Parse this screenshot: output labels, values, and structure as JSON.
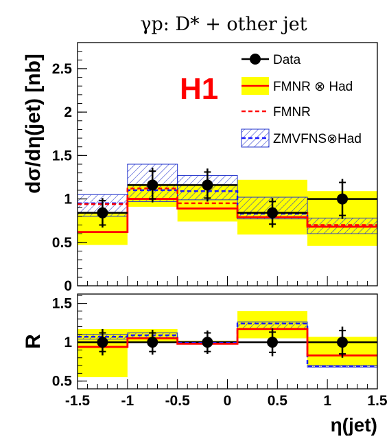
{
  "chart_data": [
    {
      "type": "line",
      "title": "γp:  D* + other jet",
      "ylabel": "dσ/dη(jet) [nb]",
      "xlabel": "",
      "xlim": [
        -1.5,
        1.5
      ],
      "ylim": [
        0,
        2.8
      ],
      "ytick_labels": [
        "0",
        "0.5",
        "1",
        "1.5",
        "2",
        "2.5"
      ],
      "yticks": [
        0,
        0.5,
        1,
        1.5,
        2,
        2.5
      ],
      "grid": false,
      "legend_position": "top-right",
      "experiment_label": "H1",
      "bins": [
        [
          -1.5,
          -1.0
        ],
        [
          -1.0,
          -0.5
        ],
        [
          -0.5,
          0.1
        ],
        [
          0.1,
          0.8
        ],
        [
          0.8,
          1.5
        ]
      ],
      "series": [
        {
          "name": "Data",
          "x": [
            -1.25,
            -0.75,
            -0.2,
            0.45,
            1.15
          ],
          "y": [
            0.84,
            1.16,
            1.16,
            0.84,
            1.0
          ],
          "err_stat": [
            0.14,
            0.16,
            0.15,
            0.13,
            0.19
          ],
          "err_tot": [
            0.17,
            0.2,
            0.19,
            0.17,
            0.23
          ]
        },
        {
          "name": "FMNR ⊗ Had",
          "values": [
            0.62,
            1.0,
            0.89,
            0.79,
            0.68
          ],
          "band_low": [
            0.47,
            0.91,
            0.74,
            0.59,
            0.46
          ],
          "band_high": [
            0.85,
            1.17,
            1.16,
            1.22,
            1.09
          ]
        },
        {
          "name": "FMNR",
          "values": [
            0.94,
            1.12,
            0.95,
            0.84,
            0.7
          ]
        },
        {
          "name": "ZMVFNS⊗Had",
          "values": [
            0.95,
            1.1,
            1.09,
            0.83,
            0.68
          ],
          "band_low": [
            0.8,
            0.97,
            0.99,
            0.77,
            0.6
          ],
          "band_high": [
            1.05,
            1.4,
            1.27,
            1.02,
            0.78
          ]
        }
      ]
    },
    {
      "type": "line",
      "title": "",
      "ylabel": "R",
      "xlabel": "η(jet)",
      "xlim": [
        -1.5,
        1.5
      ],
      "ylim": [
        0.4,
        1.62
      ],
      "ytick_labels": [
        "0.5",
        "1",
        "1.5"
      ],
      "yticks": [
        0.5,
        1,
        1.5
      ],
      "xtick_labels": [
        "-1.5",
        "-1",
        "-0.5",
        "0",
        "0.5",
        "1",
        "1.5"
      ],
      "xticks": [
        -1.5,
        -1,
        -0.5,
        0,
        0.5,
        1,
        1.5
      ],
      "reference_line": 1,
      "bins": [
        [
          -1.5,
          -1.0
        ],
        [
          -1.0,
          -0.5
        ],
        [
          -0.5,
          0.1
        ],
        [
          0.1,
          0.8
        ],
        [
          0.8,
          1.5
        ]
      ],
      "series": [
        {
          "name": "Data",
          "x": [
            -1.25,
            -0.75,
            -0.2,
            0.45,
            1.15
          ],
          "y": [
            1.0,
            1.0,
            1.0,
            1.0,
            1.0
          ],
          "err_stat": [
            0.12,
            0.12,
            0.12,
            0.13,
            0.15
          ],
          "err_tot": [
            0.17,
            0.16,
            0.15,
            0.18,
            0.2
          ]
        },
        {
          "name": "FMNR ⊗ Had",
          "values": [
            0.94,
            1.05,
            0.98,
            1.17,
            0.83
          ],
          "band_low": [
            0.55,
            1.0,
            0.97,
            1.05,
            0.69
          ],
          "band_high": [
            1.17,
            1.17,
            1.02,
            1.4,
            1.07
          ]
        },
        {
          "name": "ZMVFNS⊗Had",
          "values": [
            1.07,
            1.09,
            0.99,
            1.24,
            0.69
          ],
          "band_low": [
            1.04,
            1.06,
            0.98,
            1.17,
            0.68
          ],
          "band_high": [
            1.1,
            1.12,
            1.01,
            1.26,
            0.7
          ]
        }
      ]
    }
  ],
  "colors": {
    "band": "#ffff00",
    "fmnr_had": "#ff0000",
    "fmnr": "#ff0000",
    "zmvfns": "#1a1aff",
    "data": "#000000",
    "h1": "#ff0000"
  }
}
